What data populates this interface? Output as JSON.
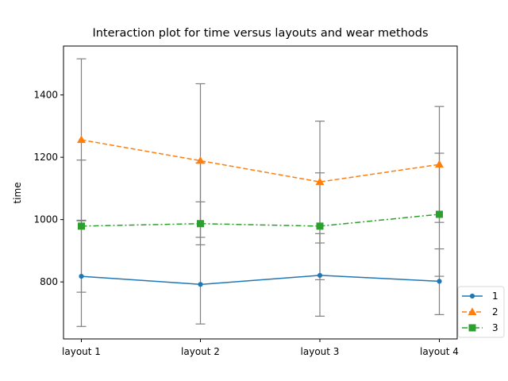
{
  "chart_data": {
    "type": "line",
    "title": "Interaction plot for time versus layouts and wear methods",
    "xlabel": "",
    "ylabel": "time",
    "categories": [
      "layout 1",
      "layout 2",
      "layout 3",
      "layout 4"
    ],
    "ylim": [
      617,
      1557
    ],
    "yticks": [
      800,
      1000,
      1200,
      1400
    ],
    "grid": false,
    "legend_position": "bottom-right",
    "series": [
      {
        "name": "1",
        "color": "#1f77b4",
        "marker": "circle",
        "linestyle": "solid",
        "values": [
          818,
          792,
          821,
          802
        ],
        "err_low": [
          657,
          665,
          690,
          695
        ],
        "err_high": [
          998,
          1182,
          955,
          1213
        ]
      },
      {
        "name": "2",
        "color": "#ff7f0e",
        "marker": "triangle",
        "linestyle": "dashed",
        "values": [
          1256,
          1189,
          1121,
          1177
        ],
        "err_low": [
          996,
          943,
          925,
          991
        ],
        "err_high": [
          1516,
          1436,
          1316,
          1363
        ]
      },
      {
        "name": "3",
        "color": "#2ca02c",
        "marker": "square",
        "linestyle": "dashdot",
        "values": [
          979,
          987,
          979,
          1017
        ],
        "err_low": [
          767,
          919,
          807,
          818
        ],
        "err_high": [
          1191,
          1057,
          1150,
          906
        ]
      }
    ]
  }
}
